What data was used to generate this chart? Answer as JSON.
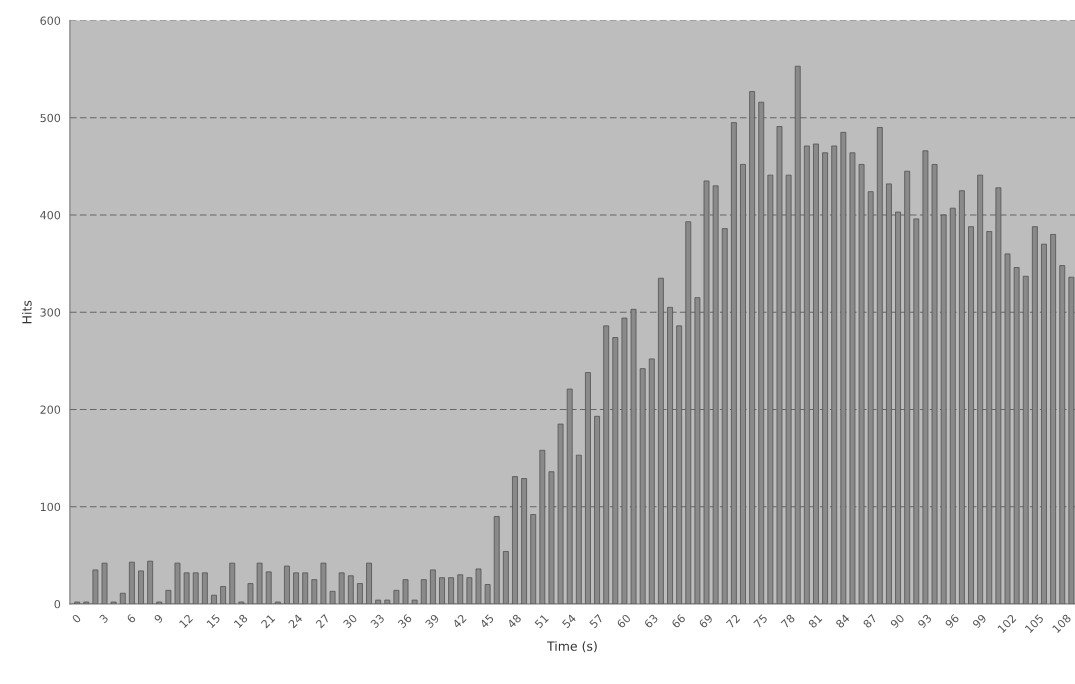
{
  "chart_data": {
    "type": "bar",
    "xlabel": "Time (s)",
    "ylabel": "Hits",
    "categories": [
      "0",
      null,
      null,
      "3",
      null,
      null,
      "6",
      null,
      null,
      "9",
      null,
      null,
      "12",
      null,
      null,
      "15",
      null,
      null,
      "18",
      null,
      null,
      "21",
      null,
      null,
      "24",
      null,
      null,
      "27",
      null,
      null,
      "30",
      null,
      null,
      "33",
      null,
      null,
      "36",
      null,
      null,
      "39",
      null,
      null,
      "42",
      null,
      null,
      "45",
      null,
      null,
      "48",
      null,
      null,
      "51",
      null,
      null,
      "54",
      null,
      null,
      "57",
      null,
      null,
      "60",
      null,
      null,
      "63",
      null,
      null,
      "66",
      null,
      null,
      "69",
      null,
      null,
      "72",
      null,
      null,
      "75",
      null,
      null,
      "78",
      null,
      null,
      "81",
      null,
      null,
      "84",
      null,
      null,
      "87",
      null,
      null,
      "90",
      null,
      null,
      "93",
      null,
      null,
      "96",
      null,
      null,
      "99",
      null,
      null,
      "102",
      null,
      null,
      "105",
      null,
      null,
      "108",
      null
    ],
    "values": [
      2,
      2,
      35,
      42,
      2,
      11,
      43,
      34,
      44,
      2,
      14,
      42,
      32,
      32,
      32,
      9,
      18,
      42,
      2,
      21,
      42,
      33,
      2,
      39,
      32,
      32,
      25,
      42,
      13,
      32,
      29,
      21,
      42,
      4,
      4,
      14,
      25,
      4,
      25,
      35,
      27,
      27,
      30,
      27,
      36,
      20,
      90,
      54,
      131,
      129,
      92,
      158,
      136,
      185,
      221,
      153,
      238,
      193,
      286,
      274,
      294,
      303,
      242,
      252,
      335,
      305,
      286,
      393,
      315,
      435,
      430,
      386,
      495,
      452,
      527,
      516,
      441,
      491,
      441,
      553,
      471,
      473,
      464,
      471,
      485,
      464,
      452,
      424,
      490,
      432,
      403,
      445,
      396,
      466,
      452,
      400,
      407,
      425,
      388,
      441,
      383,
      428,
      360,
      346,
      337,
      388,
      370,
      380,
      348,
      336
    ],
    "color": "#8a8a8a",
    "ylim": [
      0,
      600
    ],
    "yticks": [
      0,
      100,
      200,
      300,
      400,
      500,
      600
    ],
    "grid": "y"
  }
}
